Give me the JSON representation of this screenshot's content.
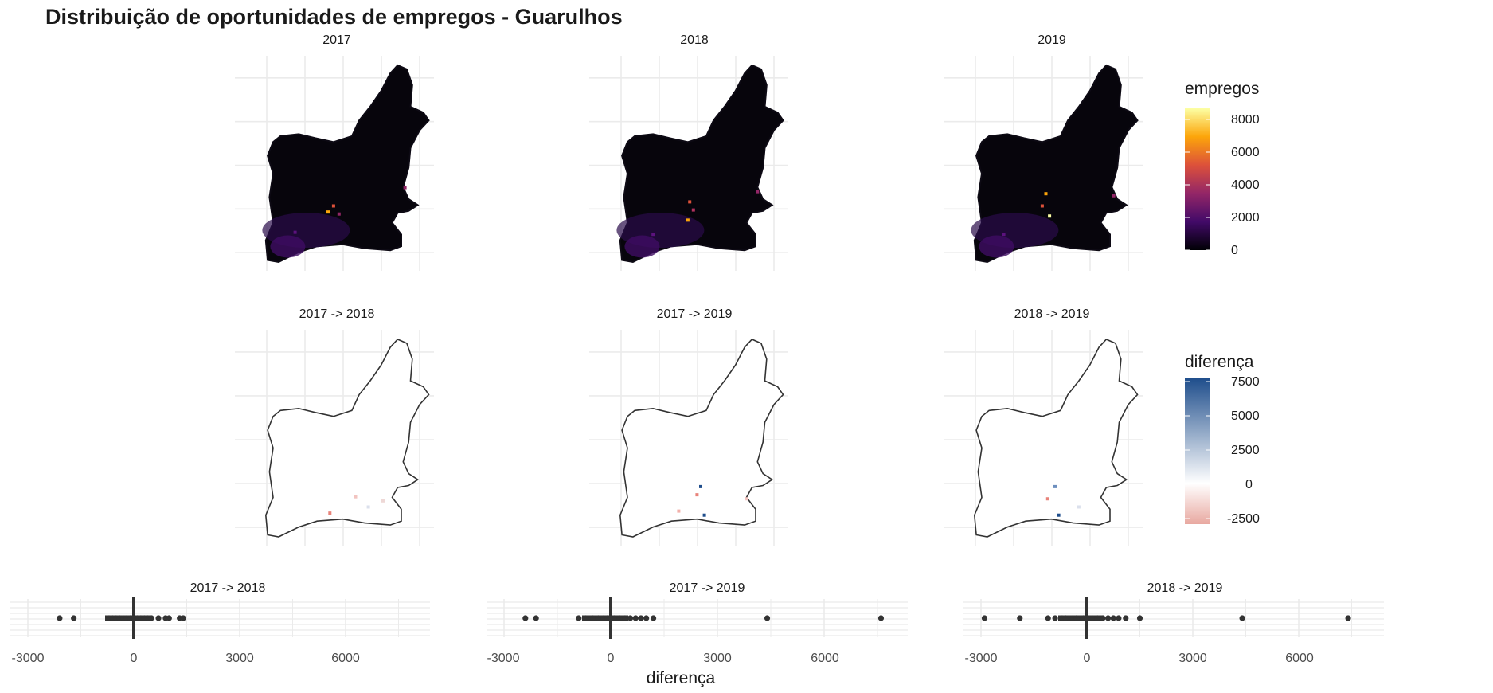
{
  "title": "Distribuição de oportunidades de empregos - Guarulhos",
  "chart_data": [
    {
      "type": "heatmap",
      "group": "empregos",
      "panels": [
        "2017",
        "2018",
        "2019"
      ],
      "legend": {
        "title": "empregos",
        "ticks": [
          "8000",
          "6000",
          "4000",
          "2000",
          "0"
        ],
        "range": [
          0,
          8800
        ],
        "colors": [
          "#000004",
          "#420a68",
          "#932667",
          "#dd513a",
          "#fca50a",
          "#fcffa4"
        ]
      },
      "grid": true
    },
    {
      "type": "heatmap",
      "group": "diferença",
      "panels": [
        "2017 -> 2018",
        "2017 -> 2019",
        "2018 -> 2019"
      ],
      "legend": {
        "title": "diferença",
        "ticks": [
          "7500",
          "5000",
          "2500",
          "0",
          "-2500"
        ],
        "range": [
          -3000,
          7800
        ],
        "colors": [
          "#e8a8a0",
          "#ffffff",
          "#1f4e8c"
        ]
      },
      "grid": true
    },
    {
      "type": "scatter",
      "panels": [
        {
          "title": "2017 -> 2018",
          "x": [
            -2100,
            -1700,
            -700,
            -600,
            -500,
            -400,
            -300,
            -200,
            -100,
            0,
            100,
            200,
            300,
            400,
            500,
            700,
            900,
            1000,
            1300,
            1400
          ]
        },
        {
          "title": "2017 -> 2019",
          "x": [
            -2400,
            -2100,
            -900,
            -700,
            -500,
            -350,
            -200,
            -100,
            0,
            100,
            250,
            400,
            550,
            700,
            850,
            1000,
            1200,
            4400,
            7600
          ]
        },
        {
          "title": "2018 -> 2019",
          "x": [
            -2900,
            -1900,
            -1100,
            -900,
            -700,
            -600,
            -400,
            -300,
            -100,
            0,
            150,
            300,
            450,
            600,
            750,
            900,
            1100,
            1500,
            4400,
            7400
          ]
        }
      ],
      "xlabel": "diferença",
      "xticks": [
        "-3000",
        "0",
        "3000",
        "6000"
      ],
      "xlim": [
        -3500,
        8200
      ],
      "vline_at": 0,
      "point_color": "#333333",
      "grid": true
    }
  ]
}
